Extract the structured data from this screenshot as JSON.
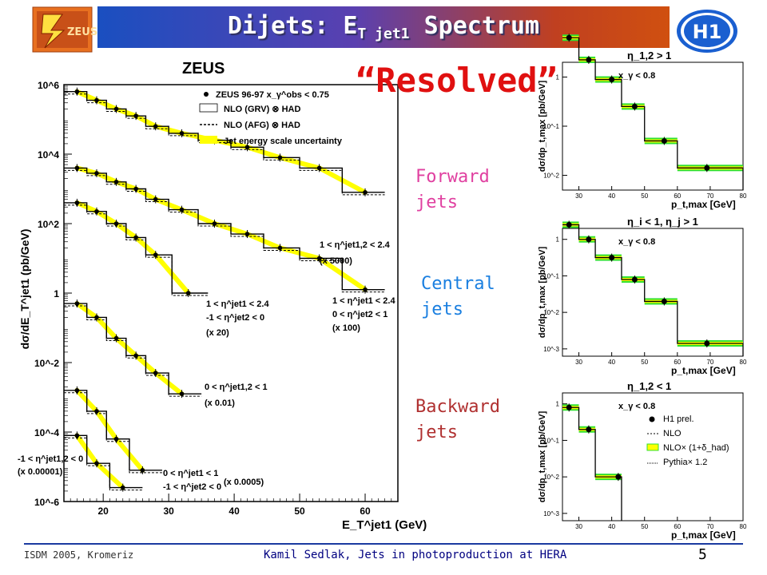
{
  "slide": {
    "title": "Dijets: E",
    "title_sub": "T jet1",
    "title_tail": " Spectrum",
    "resolved": "“Resolved”",
    "forward_label": [
      "Forward",
      "jets"
    ],
    "central_label": [
      "Central",
      "jets"
    ],
    "backward_label": [
      "Backward",
      "jets"
    ],
    "footer_left": "ISDM 2005, Kromeriz",
    "footer_center": "Kamil Sedlak,   Jets in photoproduction at HERA",
    "page_number": "5",
    "logo_left_text": "ZEUS",
    "logo_right_text": "H1",
    "colors": {
      "forward": "#e040a0",
      "central": "#1a7fe0",
      "backward": "#b03030",
      "resolved": "#e01010",
      "band": "#ffff00",
      "band_green": "#30e030"
    }
  },
  "chart_data": [
    {
      "type": "scatter",
      "title": "ZEUS",
      "xlabel": "E_T^jet1 (GeV)",
      "ylabel": "dσ/dE_T^jet1 (pb/GeV)",
      "xlim": [
        14,
        65
      ],
      "ylog": true,
      "yticks": [
        "10^6",
        "10^4",
        "10^2",
        "1",
        "10^-2",
        "10^-4",
        "10^-6"
      ],
      "xticks": [
        "20",
        "30",
        "40",
        "50",
        "60"
      ],
      "legend": [
        "ZEUS 96-97    x_γ^obs < 0.75",
        "NLO (GRV) ⊗ HAD",
        "NLO (AFG) ⊗ HAD",
        "Jet energy scale uncertainty"
      ],
      "annotations": [
        "1 < η^jet1,2 < 2.4",
        "(x 5000)",
        "1 < η^jet1 < 2.4",
        "-1 < η^jet2 < 0",
        "(x 20)",
        "1 < η^jet1 < 2.4",
        "0 < η^jet2 < 1",
        "(x 100)",
        "0 < η^jet1,2 < 1",
        "(x 0.01)",
        "-1 < η^jet1,2 < 0",
        "(x 0.00001)",
        "0 < η^jet1 < 1",
        "-1 < η^jet2 < 0",
        "(x 0.0005)"
      ],
      "series": [
        {
          "name": "1 < η^jet1,2 < 2.4 (x 5000)",
          "x": [
            16,
            19,
            22,
            25,
            28,
            32,
            37,
            42,
            47,
            53,
            60
          ],
          "y_log10": [
            5.8,
            5.55,
            5.3,
            5.1,
            4.8,
            4.6,
            4.4,
            4.2,
            3.9,
            3.6,
            2.9
          ]
        },
        {
          "name": "1 < η^jet1 < 2.4, 0 < η^jet2 < 1 (x 100)",
          "x": [
            16,
            19,
            22,
            25,
            28,
            32,
            37,
            42,
            47,
            53,
            60
          ],
          "y_log10": [
            3.6,
            3.45,
            3.2,
            3.0,
            2.7,
            2.4,
            2.0,
            1.7,
            1.3,
            1.0,
            0.1
          ]
        },
        {
          "name": "1 < η^jet1 < 2.4, -1 < η^jet2 < 0 (x 20)",
          "x": [
            16,
            19,
            22,
            25,
            28,
            33
          ],
          "y_log10": [
            2.6,
            2.35,
            2.0,
            1.6,
            1.1,
            0.0
          ]
        },
        {
          "name": "0 < η^jet1,2 < 1 (x 0.01)",
          "x": [
            16,
            19,
            22,
            25,
            28,
            32
          ],
          "y_log10": [
            -0.3,
            -0.7,
            -1.3,
            -1.8,
            -2.3,
            -2.9
          ]
        },
        {
          "name": "-1 < η^jet1,2 < 0 (x 0.00001)",
          "x": [
            16,
            19,
            22,
            26
          ],
          "y_log10": [
            -2.8,
            -3.4,
            -4.2,
            -5.1
          ]
        },
        {
          "name": "0 < η^jet1 < 1, -1 < η^jet2 < 0 (x 0.0005)",
          "x": [
            16,
            19,
            23
          ],
          "y_log10": [
            -4.1,
            -4.9,
            -5.6
          ]
        }
      ]
    },
    {
      "type": "scatter",
      "title": "η_1,2 > 1",
      "inner_label": "x_γ < 0.8",
      "xlabel": "p_t,max [GeV]",
      "ylabel": "dσ/dp_t,max [pb/GeV]",
      "xticks": [
        "30",
        "40",
        "50",
        "60",
        "70",
        "80"
      ],
      "yticks": [
        "1",
        "10^-1",
        "10^-2"
      ],
      "x": [
        27,
        33,
        40,
        47,
        56,
        69
      ],
      "y_log10": [
        0.8,
        0.35,
        -0.05,
        -0.6,
        -1.3,
        -1.85
      ]
    },
    {
      "type": "scatter",
      "title": "η_i < 1, η_j > 1",
      "inner_label": "x_γ < 0.8",
      "xlabel": "p_t,max [GeV]",
      "ylabel": "dσ/dp_t,max [pb/GeV]",
      "xticks": [
        "30",
        "40",
        "50",
        "60",
        "70",
        "80"
      ],
      "yticks": [
        "1",
        "10^-1",
        "10^-2",
        "10^-3"
      ],
      "x": [
        27,
        33,
        40,
        47,
        56,
        69
      ],
      "y_log10": [
        0.4,
        0.0,
        -0.5,
        -1.1,
        -1.7,
        -2.85
      ]
    },
    {
      "type": "scatter",
      "title": "η_1,2 < 1",
      "inner_label": "x_γ < 0.8",
      "xlabel": "p_t,max [GeV]",
      "ylabel": "dσ/dp_t,max [pb/GeV]",
      "xticks": [
        "30",
        "40",
        "50",
        "60",
        "70",
        "80"
      ],
      "yticks": [
        "1",
        "10^-1",
        "10^-2",
        "10^-3"
      ],
      "legend": [
        "H1 prel.",
        "NLO",
        "NLO× (1+δ_had)",
        "Pythia× 1.2"
      ],
      "x": [
        27,
        33,
        42
      ],
      "y_log10": [
        -0.1,
        -0.7,
        -2.0
      ]
    }
  ]
}
